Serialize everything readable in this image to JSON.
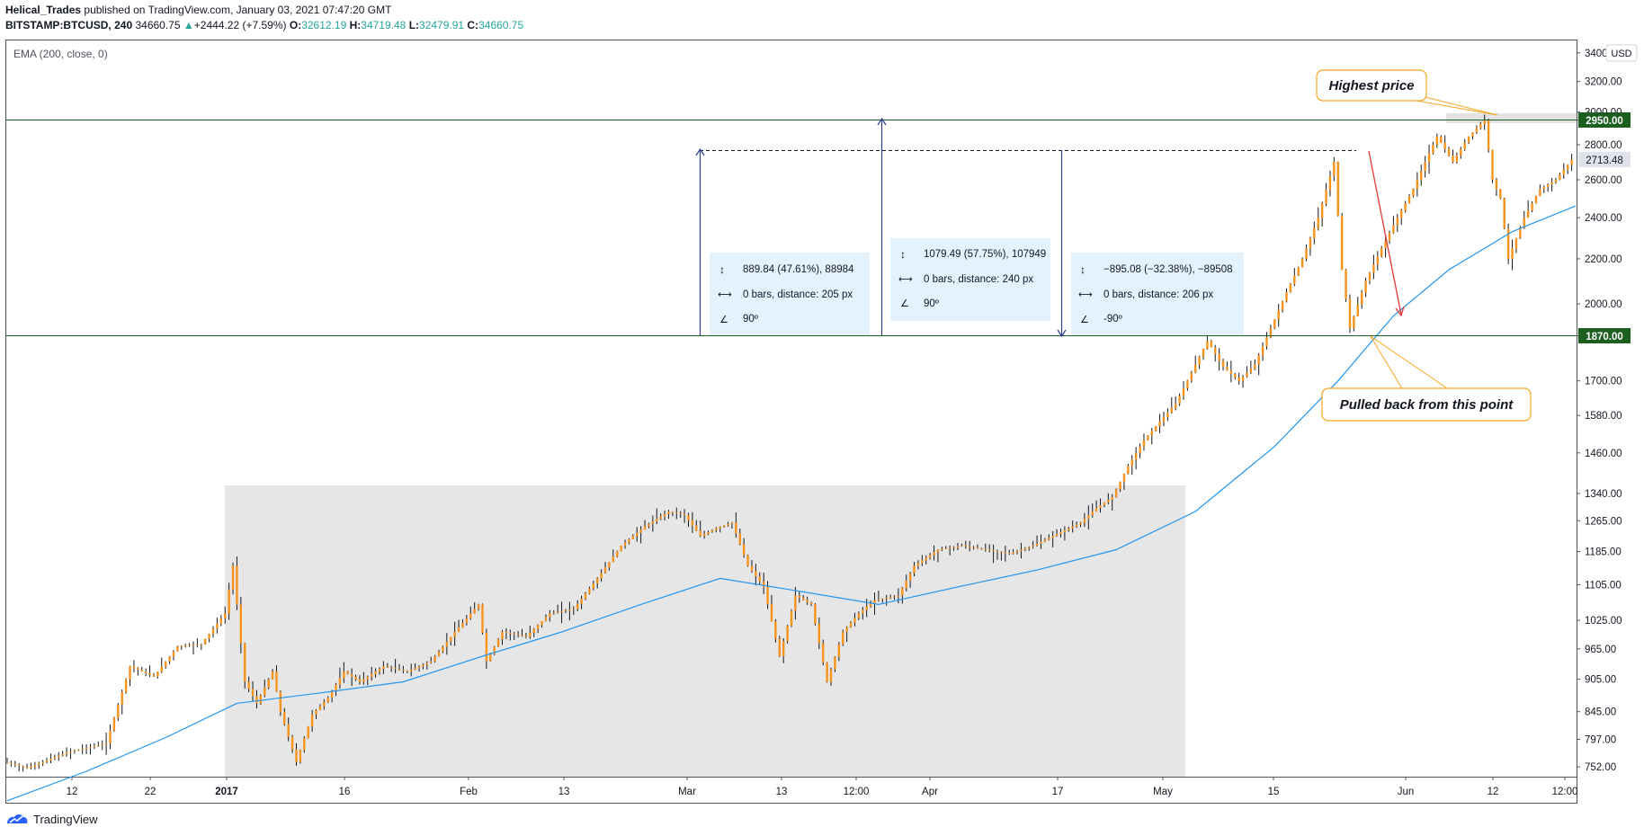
{
  "header": {
    "author": "Helical_Trades",
    "published": "published on TradingView.com, January 03, 2021 07:47:20 GMT",
    "symbol": "BITSTAMP:BTCUSD, 240",
    "last": "34660.75",
    "change": "+2444.22 (+7.59%)",
    "o_label": "O:",
    "o": "32612.19",
    "h_label": "H:",
    "h": "34719.48",
    "l_label": "L:",
    "l": "32479.91",
    "c_label": "C:",
    "c": "34660.75"
  },
  "indicator_label": "EMA (200, close, 0)",
  "currency_badge": "USD",
  "footer": {
    "brand": "TradingView"
  },
  "colors": {
    "candle": "#f7931a",
    "wick": "#131722",
    "ema": "#2196f3",
    "hline": "#1b5e20",
    "measure": "#2c3e8c",
    "measure_bg": "#e3f2fd",
    "callout": "#f5a623",
    "shade": "#e6e6e6",
    "arrow": "#e53935"
  },
  "annotations": {
    "highest": "Highest price",
    "pullback": "Pulled back from this point"
  },
  "measures": [
    {
      "line1": "889.84 (47.61%), 88984",
      "line2": "0 bars, distance: 205 px",
      "line3": "90º"
    },
    {
      "line1": "1079.49 (57.75%), 107949",
      "line2": "0 bars, distance: 240 px",
      "line3": "90º"
    },
    {
      "line1": "−895.08 (−32.38%), −89508",
      "line2": "0 bars, distance: 206 px",
      "line3": "-90º"
    }
  ],
  "chart_data": {
    "type": "candlestick",
    "series": [
      {
        "name": "BITSTAMP:BTCUSD, 240"
      },
      {
        "name": "EMA (200, close, 0)"
      }
    ],
    "y_axis": {
      "scale": "log",
      "ticks": [
        752,
        797,
        845,
        905,
        965,
        1025,
        1105,
        1185,
        1265,
        1340,
        1460,
        1580,
        1700,
        1870,
        2000,
        2200,
        2400,
        2600,
        2800,
        2950,
        3000,
        3200,
        3400
      ],
      "tick_labels": [
        "752.00",
        "797.00",
        "845.00",
        "905.00",
        "965.00",
        "1025.00",
        "1105.00",
        "1185.00",
        "1265.00",
        "1340.00",
        "1460.00",
        "1580.00",
        "1700.00",
        "1870.00",
        "2000.00",
        "2200.00",
        "2400.00",
        "2600.00",
        "2800.00",
        "2950.00",
        "3000.00",
        "3200.00",
        "3400.00"
      ],
      "range": [
        730,
        3450
      ]
    },
    "x_axis": {
      "tick_labels": [
        "12",
        "22",
        "2017",
        "16",
        "Feb",
        "13",
        "Mar",
        "13",
        "12:00",
        "Apr",
        "17",
        "May",
        "15",
        "Jun",
        "12",
        "12:00"
      ]
    },
    "horizontal_levels": [
      {
        "value": 2950,
        "label": "2950.00"
      },
      {
        "value": 1870,
        "label": "1870.00"
      }
    ],
    "current_price": {
      "value": 2713.48,
      "label": "2713.48"
    },
    "price_path": [
      [
        0,
        760
      ],
      [
        6,
        750
      ],
      [
        16,
        775
      ],
      [
        26,
        790
      ],
      [
        32,
        930
      ],
      [
        38,
        910
      ],
      [
        44,
        970
      ],
      [
        50,
        975
      ],
      [
        56,
        1040
      ],
      [
        58,
        1150
      ],
      [
        61,
        900
      ],
      [
        64,
        860
      ],
      [
        68,
        920
      ],
      [
        70,
        845
      ],
      [
        74,
        760
      ],
      [
        78,
        840
      ],
      [
        82,
        870
      ],
      [
        86,
        920
      ],
      [
        90,
        900
      ],
      [
        96,
        930
      ],
      [
        102,
        920
      ],
      [
        108,
        940
      ],
      [
        114,
        1000
      ],
      [
        120,
        1060
      ],
      [
        122,
        940
      ],
      [
        126,
        1000
      ],
      [
        132,
        990
      ],
      [
        138,
        1040
      ],
      [
        144,
        1050
      ],
      [
        150,
        1120
      ],
      [
        156,
        1200
      ],
      [
        162,
        1250
      ],
      [
        168,
        1290
      ],
      [
        172,
        1280
      ],
      [
        176,
        1225
      ],
      [
        180,
        1245
      ],
      [
        184,
        1260
      ],
      [
        188,
        1150
      ],
      [
        192,
        1100
      ],
      [
        196,
        950
      ],
      [
        200,
        1080
      ],
      [
        204,
        1060
      ],
      [
        208,
        900
      ],
      [
        212,
        1000
      ],
      [
        216,
        1040
      ],
      [
        220,
        1070
      ],
      [
        226,
        1080
      ],
      [
        230,
        1150
      ],
      [
        236,
        1190
      ],
      [
        242,
        1200
      ],
      [
        248,
        1190
      ],
      [
        254,
        1180
      ],
      [
        260,
        1200
      ],
      [
        266,
        1230
      ],
      [
        272,
        1260
      ],
      [
        276,
        1300
      ],
      [
        280,
        1330
      ],
      [
        284,
        1420
      ],
      [
        288,
        1500
      ],
      [
        292,
        1560
      ],
      [
        296,
        1620
      ],
      [
        300,
        1730
      ],
      [
        304,
        1850
      ],
      [
        308,
        1750
      ],
      [
        312,
        1700
      ],
      [
        316,
        1760
      ],
      [
        320,
        1900
      ],
      [
        324,
        2050
      ],
      [
        328,
        2200
      ],
      [
        332,
        2400
      ],
      [
        336,
        2700
      ],
      [
        338,
        2150
      ],
      [
        340,
        1900
      ],
      [
        344,
        2100
      ],
      [
        348,
        2250
      ],
      [
        352,
        2400
      ],
      [
        356,
        2550
      ],
      [
        360,
        2750
      ],
      [
        362,
        2850
      ],
      [
        366,
        2700
      ],
      [
        370,
        2850
      ],
      [
        374,
        2950
      ],
      [
        376,
        2600
      ],
      [
        378,
        2500
      ],
      [
        380,
        2200
      ],
      [
        384,
        2400
      ],
      [
        388,
        2550
      ],
      [
        392,
        2600
      ],
      [
        396,
        2713
      ]
    ],
    "ema_path": [
      [
        0,
        700
      ],
      [
        20,
        745
      ],
      [
        40,
        800
      ],
      [
        58,
        860
      ],
      [
        80,
        880
      ],
      [
        100,
        900
      ],
      [
        120,
        950
      ],
      [
        140,
        1000
      ],
      [
        160,
        1060
      ],
      [
        180,
        1120
      ],
      [
        200,
        1090
      ],
      [
        220,
        1060
      ],
      [
        240,
        1100
      ],
      [
        260,
        1140
      ],
      [
        280,
        1190
      ],
      [
        300,
        1290
      ],
      [
        320,
        1480
      ],
      [
        336,
        1700
      ],
      [
        350,
        1950
      ],
      [
        364,
        2150
      ],
      [
        380,
        2330
      ],
      [
        396,
        2460
      ]
    ]
  }
}
